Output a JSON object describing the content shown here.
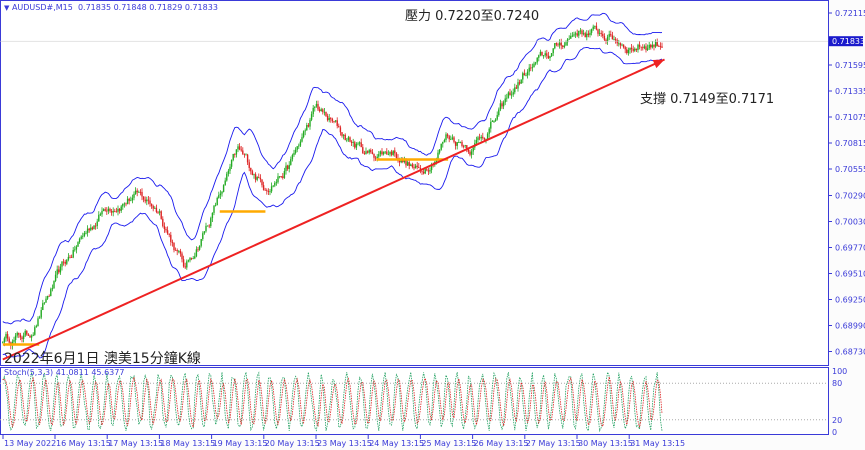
{
  "header": {
    "symbol": "AUDUSD#,M15",
    "ohlc": "0.71835 0.71848 0.71829 0.71833"
  },
  "annotations": {
    "resistance": "壓力 0.7220至0.7240",
    "support": "支撐 0.7149至0.7171",
    "caption": "2022年6月1日 澳美15分鐘K線"
  },
  "indicator": {
    "label": "Stoch(5,3,3) 41.0811 45.6377",
    "levels": [
      "100",
      "80",
      "20",
      "0"
    ]
  },
  "colors": {
    "axis": "#3a3ad8",
    "bull": "#22aa22",
    "bear": "#dd2222",
    "band": "#1a1aee",
    "trend": "#ee2222",
    "zone": "#ffaa00",
    "current": "#1a1acc"
  },
  "chart_data": {
    "type": "candlestick",
    "timeframe": "M15",
    "current_price": "0.71833",
    "y_ticks": [
      "0.72115",
      "0.71595",
      "0.71335",
      "0.71075",
      "0.70815",
      "0.70555",
      "0.70290",
      "0.70030",
      "0.69770",
      "0.69510",
      "0.69250",
      "0.68990",
      "0.68730"
    ],
    "x_ticks": [
      "13 May 2022",
      "16 May 13:15",
      "17 May 13:15",
      "18 May 13:15",
      "19 May 13:15",
      "20 May 13:15",
      "23 May 13:15",
      "24 May 13:15",
      "25 May 13:15",
      "26 May 13:15",
      "27 May 13:15",
      "30 May 13:15",
      "31 May 13:15"
    ],
    "ylim": [
      0.6862,
      0.7225
    ],
    "price_path": [
      [
        "13 May 13:15",
        0.6886
      ],
      [
        "16 May 01:15",
        0.689
      ],
      [
        "16 May 13:15",
        0.694
      ],
      [
        "17 May 01:15",
        0.6985
      ],
      [
        "17 May 13:15",
        0.702
      ],
      [
        "18 May 01:15",
        0.703
      ],
      [
        "18 May 13:15",
        0.7015
      ],
      [
        "19 May 01:15",
        0.6955
      ],
      [
        "19 May 13:15",
        0.701
      ],
      [
        "20 May 01:15",
        0.707
      ],
      [
        "20 May 13:15",
        0.704
      ],
      [
        "23 May 01:15",
        0.706
      ],
      [
        "23 May 13:15",
        0.7115
      ],
      [
        "24 May 01:15",
        0.709
      ],
      [
        "24 May 13:15",
        0.707
      ],
      [
        "25 May 01:15",
        0.7075
      ],
      [
        "25 May 13:15",
        0.705
      ],
      [
        "26 May 01:15",
        0.709
      ],
      [
        "26 May 13:15",
        0.708
      ],
      [
        "27 May 01:15",
        0.711
      ],
      [
        "27 May 13:15",
        0.715
      ],
      [
        "30 May 01:15",
        0.717
      ],
      [
        "30 May 13:15",
        0.7195
      ],
      [
        "31 May 01:15",
        0.719
      ],
      [
        "31 May 13:15",
        0.718
      ],
      [
        "01 Jun 04:45",
        0.71833
      ]
    ],
    "trendline": [
      [
        "13 May 13:15",
        0.6865
      ],
      [
        "01 Jun 05:30",
        0.7165
      ]
    ],
    "support_segments": [
      {
        "from": "13 May 13:15",
        "to": "16 May 06:00",
        "price": 0.688
      },
      {
        "from": "19 May 17:00",
        "to": "20 May 14:00",
        "price": 0.7013
      },
      {
        "from": "24 May 17:00",
        "to": "26 May 02:00",
        "price": 0.7065
      }
    ],
    "stoch": {
      "params": "5,3,3",
      "main": 41.0811,
      "signal": 45.6377,
      "levels": [
        80,
        20
      ],
      "range": [
        0,
        100
      ]
    }
  }
}
